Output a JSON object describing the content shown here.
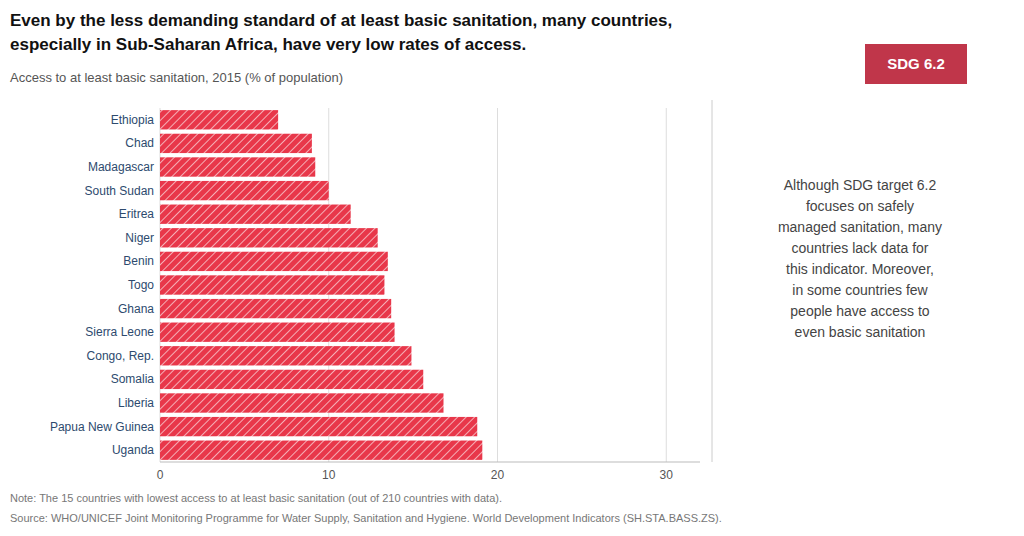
{
  "chart_data": {
    "type": "bar",
    "orientation": "horizontal",
    "title": [
      "Even by the less demanding standard of at least basic sanitation, many countries,",
      "especially in Sub-Saharan Africa, have very low rates of access."
    ],
    "subtitle": "Access to at least basic sanitation, 2015 (% of population)",
    "categories": [
      "Ethiopia",
      "Chad",
      "Madagascar",
      "South Sudan",
      "Eritrea",
      "Niger",
      "Benin",
      "Togo",
      "Ghana",
      "Sierra Leone",
      "Congo, Rep.",
      "Somalia",
      "Liberia",
      "Papua New Guinea",
      "Uganda"
    ],
    "values": [
      7.0,
      9.0,
      9.2,
      10.0,
      11.3,
      12.9,
      13.5,
      13.3,
      13.7,
      13.9,
      14.9,
      15.6,
      16.8,
      18.8,
      19.1
    ],
    "color": "#e8374a",
    "xlim": [
      0,
      32
    ],
    "xticks": [
      0,
      10,
      20,
      30
    ],
    "grid": true,
    "annotations": [
      "SDG 6.2",
      "Although SDG target 6.2\nfocuses on safely\nmanaged sanitation, many\ncountries lack data for\nthis indicator. Moreover,\nin some countries few\npeople have access to\neven basic sanitation"
    ],
    "note": "Note: The 15 countries with lowest access to at least basic sanitation (out of 210 countries with data).",
    "source": "Source: WHO/UNICEF Joint Monitoring Programme for Water Supply, Sanitation and Hygiene. World Development Indicators (SH.STA.BASS.ZS)."
  }
}
